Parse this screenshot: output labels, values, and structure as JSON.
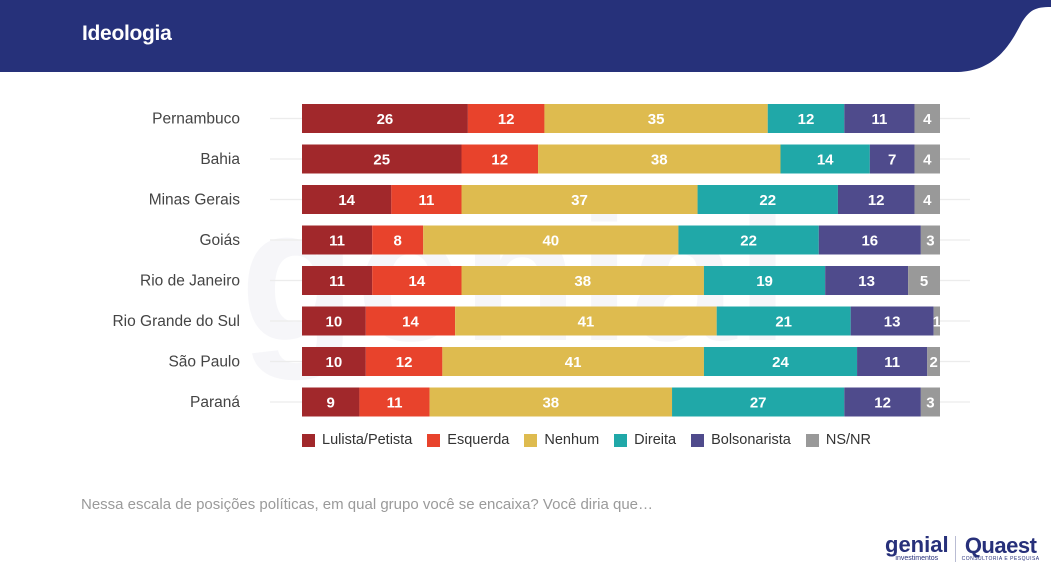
{
  "header": {
    "title": "Ideologia"
  },
  "colors": {
    "header_bg": "#26317a",
    "Lulista/Petista": "#a1282b",
    "Esquerda": "#e8432c",
    "Nenhum": "#debb4f",
    "Direita": "#20a8a8",
    "Bolsonarista": "#4f4b8c",
    "NS/NR": "#999999"
  },
  "chart_data": {
    "type": "bar",
    "orientation": "horizontal",
    "stacked": true,
    "title": "Ideologia",
    "categories": [
      "Pernambuco",
      "Bahia",
      "Minas Gerais",
      "Goiás",
      "Rio de Janeiro",
      "Rio Grande do Sul",
      "São Paulo",
      "Paraná"
    ],
    "series": [
      {
        "name": "Lulista/Petista",
        "values": [
          26,
          25,
          14,
          11,
          11,
          10,
          10,
          9
        ]
      },
      {
        "name": "Esquerda",
        "values": [
          12,
          12,
          11,
          8,
          14,
          14,
          12,
          11
        ]
      },
      {
        "name": "Nenhum",
        "values": [
          35,
          38,
          37,
          40,
          38,
          41,
          41,
          38
        ]
      },
      {
        "name": "Direita",
        "values": [
          12,
          14,
          22,
          22,
          19,
          21,
          24,
          27
        ]
      },
      {
        "name": "Bolsonarista",
        "values": [
          11,
          7,
          12,
          16,
          13,
          13,
          11,
          12
        ]
      },
      {
        "name": "NS/NR",
        "values": [
          4,
          4,
          4,
          3,
          5,
          1,
          2,
          3
        ]
      }
    ],
    "xlim": [
      0,
      100
    ],
    "xlabel": "",
    "ylabel": "",
    "grid": true,
    "legend_position": "bottom",
    "data_labels": true
  },
  "legend": [
    {
      "label": "Lulista/Petista"
    },
    {
      "label": "Esquerda"
    },
    {
      "label": "Nenhum"
    },
    {
      "label": "Direita"
    },
    {
      "label": "Bolsonarista"
    },
    {
      "label": "NS/NR"
    }
  ],
  "footer": {
    "question": "Nessa escala de posições políticas, em qual grupo você se encaixa? Você diria que…",
    "logo_genial": "genial",
    "logo_genial_sub": "investimentos",
    "logo_quaest": "Quaest",
    "logo_quaest_sub": "CONSULTORIA E PESQUISA"
  }
}
